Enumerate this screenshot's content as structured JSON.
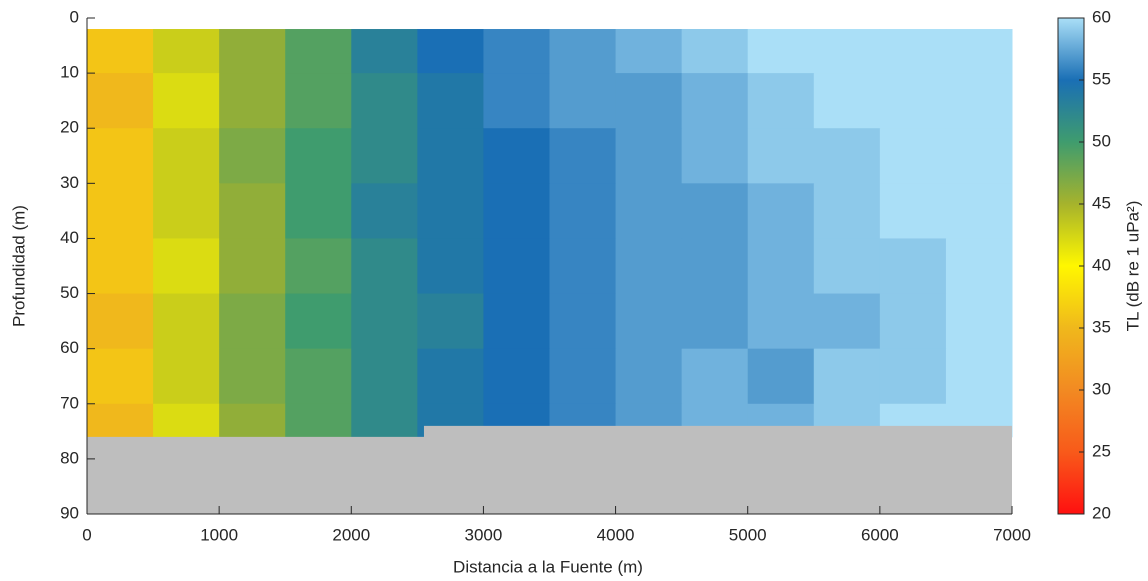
{
  "chart_data": {
    "type": "heatmap",
    "xlabel": "Distancia a la Fuente (m)",
    "ylabel": "Profundidad (m)",
    "colorbar_label": "TL (dB re 1 uPa²)",
    "xlim": [
      0,
      7000
    ],
    "xticks": [
      0,
      1000,
      2000,
      3000,
      4000,
      5000,
      6000,
      7000
    ],
    "ylim": [
      0,
      90
    ],
    "yticks": [
      0,
      10,
      20,
      30,
      40,
      50,
      60,
      70,
      80,
      90
    ],
    "y_reversed": true,
    "clim": [
      20,
      60
    ],
    "cticks": [
      20,
      25,
      30,
      35,
      40,
      45,
      50,
      55,
      60
    ],
    "colormap": [
      "#ff1010",
      "#f85a1a",
      "#f28a22",
      "#f0b81c",
      "#fff700",
      "#a6b32c",
      "#3f9c6e",
      "#1a6fb5",
      "#aadff7"
    ],
    "x_edges": [
      0,
      500,
      1000,
      1500,
      2000,
      2500,
      3000,
      3500,
      4000,
      4500,
      5000,
      5500,
      6000,
      6500,
      7000
    ],
    "y_edges": [
      2,
      10,
      20,
      30,
      40,
      50,
      60,
      70,
      76
    ],
    "values": [
      [
        36,
        43,
        46,
        49,
        53,
        55,
        56,
        57,
        58,
        59,
        60,
        60,
        60,
        60
      ],
      [
        35,
        42,
        46,
        49,
        52,
        54,
        56,
        57,
        57,
        58,
        59,
        60,
        60,
        60
      ],
      [
        36,
        43,
        47,
        50,
        52,
        54,
        55,
        56,
        57,
        58,
        59,
        59,
        60,
        60
      ],
      [
        36,
        43,
        46,
        50,
        53,
        54,
        55,
        56,
        57,
        57,
        58,
        59,
        60,
        60
      ],
      [
        36,
        42,
        46,
        49,
        52,
        54,
        55,
        56,
        57,
        57,
        58,
        59,
        59,
        60
      ],
      [
        35,
        43,
        47,
        50,
        52,
        53,
        55,
        56,
        57,
        57,
        58,
        58,
        59,
        60
      ],
      [
        36,
        43,
        47,
        49,
        52,
        54,
        55,
        56,
        57,
        58,
        57,
        59,
        59,
        60
      ],
      [
        35,
        42,
        46,
        49,
        52,
        54,
        55,
        56,
        57,
        58,
        58,
        59,
        60,
        60
      ]
    ],
    "bathymetry": {
      "x": [
        0,
        2550,
        2550,
        7000
      ],
      "depth": [
        76,
        76,
        74,
        74
      ],
      "color": "#bebebe"
    }
  }
}
